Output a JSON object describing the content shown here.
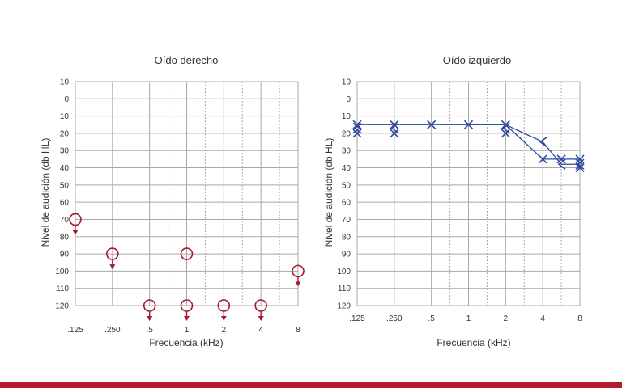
{
  "colors": {
    "right_ear": "#a6192e",
    "left_ear": "#2e4a9e",
    "grid": "#a8a8a8",
    "text": "#333333",
    "bottom_bar": "#b51b30"
  },
  "chart_data": [
    {
      "type": "scatter",
      "title": "Oído derecho",
      "xlabel": "Frecuencia (kHz)",
      "ylabel": "Nivel de audición (db HL)",
      "x_ticks": [
        ".125",
        ".250",
        ".5",
        "1",
        "2",
        "4",
        "8"
      ],
      "y_ticks": [
        "-10",
        "0",
        "10",
        "20",
        "30",
        "40",
        "50",
        "60",
        "70",
        "80",
        "90",
        "100",
        "110",
        "120"
      ],
      "ylim": [
        -10,
        120
      ],
      "y_inverted": true,
      "grid": true,
      "series": [
        {
          "marker": "circle",
          "points": [
            {
              "x": ".125",
              "y": 70,
              "no_response": true
            },
            {
              "x": ".250",
              "y": 90,
              "no_response": true
            },
            {
              "x": ".5",
              "y": 120,
              "no_response": true
            },
            {
              "x": "1",
              "y": 90,
              "no_response": false
            },
            {
              "x": "1",
              "y": 120,
              "no_response": true
            },
            {
              "x": "2",
              "y": 120,
              "no_response": true
            },
            {
              "x": "4",
              "y": 120,
              "no_response": true
            },
            {
              "x": "8",
              "y": 100,
              "no_response": true
            }
          ]
        }
      ]
    },
    {
      "type": "line",
      "title": "Oído izquierdo",
      "xlabel": "Frecuencia (kHz)",
      "ylabel": "Nivel de audición (db HL)",
      "x_ticks": [
        ".125",
        ".250",
        ".5",
        "1",
        "2",
        "4",
        "8"
      ],
      "y_ticks": [
        "-10",
        "0",
        "10",
        "20",
        "30",
        "40",
        "50",
        "60",
        "70",
        "80",
        "90",
        "100",
        "110",
        "120"
      ],
      "ylim": [
        -10,
        120
      ],
      "y_inverted": true,
      "grid": true,
      "series": [
        {
          "marker": "x",
          "points": [
            {
              "x": ".125",
              "y": 15
            },
            {
              "x": ".250",
              "y": 15
            },
            {
              "x": ".5",
              "y": 15
            },
            {
              "x": "1",
              "y": 15
            },
            {
              "x": "2",
              "y": 15
            },
            {
              "x": "4",
              "y": 35
            },
            {
              "x": "6",
              "y": 35
            },
            {
              "x": "8",
              "y": 35
            }
          ]
        },
        {
          "marker": "x",
          "points": [
            {
              "x": ".125",
              "y": 20
            },
            {
              "x": ".250",
              "y": 20
            },
            {
              "x": "2",
              "y": 20
            },
            {
              "x": "8",
              "y": 40
            }
          ]
        },
        {
          "marker": "bracket-left",
          "points": [
            {
              "x": ".125",
              "y": 17
            },
            {
              "x": ".250",
              "y": 17
            },
            {
              "x": "2",
              "y": 17
            },
            {
              "x": "4",
              "y": 25
            },
            {
              "x": "6",
              "y": 38
            },
            {
              "x": "8",
              "y": 38
            }
          ]
        },
        {
          "marker": "bracket-right",
          "points": [
            {
              "x": ".125",
              "y": 17
            },
            {
              "x": "8",
              "y": 38
            }
          ]
        }
      ],
      "lines": [
        {
          "points": [
            {
              "x": ".125",
              "y": 15
            },
            {
              "x": ".250",
              "y": 15
            },
            {
              "x": ".5",
              "y": 15
            },
            {
              "x": "1",
              "y": 15
            },
            {
              "x": "2",
              "y": 15
            },
            {
              "x": "4",
              "y": 35
            },
            {
              "x": "6",
              "y": 35
            },
            {
              "x": "8",
              "y": 35
            }
          ]
        },
        {
          "points": [
            {
              "x": "1",
              "y": 15
            },
            {
              "x": "2",
              "y": 15
            },
            {
              "x": "4",
              "y": 25
            },
            {
              "x": "6",
              "y": 38
            },
            {
              "x": "8",
              "y": 38
            }
          ]
        }
      ]
    }
  ]
}
